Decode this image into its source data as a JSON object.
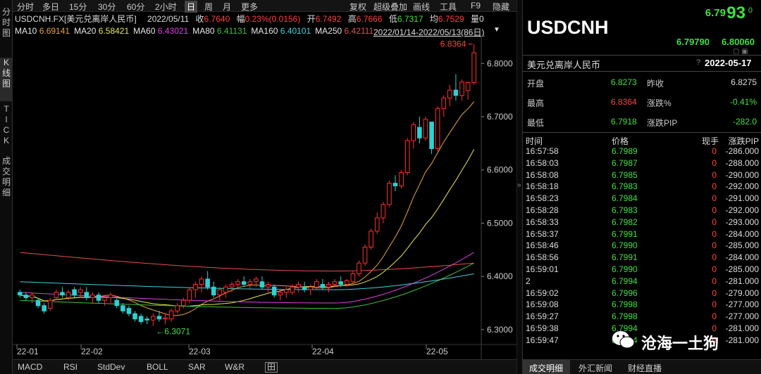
{
  "vtabs": [
    {
      "label": "分时图",
      "active": false
    },
    {
      "label": "K线图",
      "active": true
    },
    {
      "label": "TICK",
      "active": false
    },
    {
      "label": "成交明细",
      "active": false
    }
  ],
  "toolbar": {
    "left": [
      "分时",
      "多日",
      "15分",
      "30分",
      "60分",
      "2小时",
      "日",
      "周",
      "月",
      "更多"
    ],
    "active": "日",
    "right": [
      "复权",
      "超级叠加",
      "画线",
      "工具",
      "F9",
      "隐藏"
    ]
  },
  "info": {
    "symbol": "USDCNH.FX[美元兑离岸人民币]",
    "date": "2022/05/11",
    "close_label": "收",
    "close": "6.7640",
    "range_label": "幅",
    "range": "0.23%(0.0156)",
    "open_label": "开",
    "open": "6.7492",
    "high_label": "高",
    "high": "6.7666",
    "low_label": "低",
    "low": "6.7317",
    "last_label": "均",
    "last": "6.7529",
    "vol_label": "量",
    "vol": "0"
  },
  "ma": [
    {
      "label": "MA10",
      "value": "6.69141",
      "color": "#e8e8e8",
      "vcolor": "#e8a33a"
    },
    {
      "label": "MA20",
      "value": "6.58421",
      "color": "#e8e8e8",
      "vcolor": "#e8e84a"
    },
    {
      "label": "MA60",
      "value": "6.43021",
      "color": "#e8e8e8",
      "vcolor": "#e040e0"
    },
    {
      "label": "MA80",
      "value": "6.41131",
      "color": "#e8e8e8",
      "vcolor": "#40c040"
    },
    {
      "label": "MA160",
      "value": "6.40101",
      "color": "#e8e8e8",
      "vcolor": "#40d0e0"
    },
    {
      "label": "MA250",
      "value": "6.42111",
      "color": "#e8e8e8",
      "vcolor": "#e05050"
    }
  ],
  "range_text": "2022/01/14-2022/05/13(86日)",
  "chart_data": {
    "type": "candlestick",
    "y_ticks": [
      "6.8000",
      "6.7000",
      "6.6000",
      "6.5000",
      "6.4000",
      "6.3000"
    ],
    "ylim": [
      6.28,
      6.84
    ],
    "x_ticks": [
      "22-01",
      "22-02",
      "22-03",
      "22-04",
      "22-05"
    ],
    "annotations": {
      "max": "6.8364",
      "min": "6.3071"
    },
    "candles": [
      [
        6.37,
        6.375,
        6.36,
        6.365
      ],
      [
        6.365,
        6.37,
        6.355,
        6.36
      ],
      [
        6.36,
        6.37,
        6.35,
        6.365
      ],
      [
        6.355,
        6.36,
        6.34,
        6.345
      ],
      [
        6.345,
        6.35,
        6.33,
        6.335
      ],
      [
        6.34,
        6.36,
        6.335,
        6.355
      ],
      [
        6.36,
        6.375,
        6.355,
        6.37
      ],
      [
        6.37,
        6.38,
        6.36,
        6.365
      ],
      [
        6.36,
        6.375,
        6.355,
        6.37
      ],
      [
        6.375,
        6.38,
        6.36,
        6.365
      ],
      [
        6.37,
        6.38,
        6.36,
        6.375
      ],
      [
        6.37,
        6.38,
        6.355,
        6.36
      ],
      [
        6.36,
        6.37,
        6.35,
        6.365
      ],
      [
        6.365,
        6.37,
        6.35,
        6.355
      ],
      [
        6.355,
        6.365,
        6.345,
        6.36
      ],
      [
        6.36,
        6.37,
        6.35,
        6.365
      ],
      [
        6.355,
        6.36,
        6.34,
        6.345
      ],
      [
        6.345,
        6.35,
        6.33,
        6.335
      ],
      [
        6.34,
        6.345,
        6.325,
        6.33
      ],
      [
        6.33,
        6.335,
        6.315,
        6.32
      ],
      [
        6.325,
        6.33,
        6.31,
        6.315
      ],
      [
        6.32,
        6.325,
        6.31,
        6.318
      ],
      [
        6.318,
        6.33,
        6.3071,
        6.325
      ],
      [
        6.325,
        6.335,
        6.315,
        6.32
      ],
      [
        6.32,
        6.33,
        6.31,
        6.322
      ],
      [
        6.32,
        6.34,
        6.315,
        6.335
      ],
      [
        6.335,
        6.35,
        6.33,
        6.345
      ],
      [
        6.345,
        6.36,
        6.34,
        6.355
      ],
      [
        6.355,
        6.38,
        6.35,
        6.375
      ],
      [
        6.375,
        6.39,
        6.36,
        6.385
      ],
      [
        6.385,
        6.4,
        6.37,
        6.395
      ],
      [
        6.395,
        6.41,
        6.375,
        6.38
      ],
      [
        6.38,
        6.39,
        6.36,
        6.365
      ],
      [
        6.365,
        6.38,
        6.355,
        6.375
      ],
      [
        6.37,
        6.385,
        6.36,
        6.38
      ],
      [
        6.38,
        6.39,
        6.37,
        6.385
      ],
      [
        6.385,
        6.395,
        6.375,
        6.39
      ],
      [
        6.39,
        6.4,
        6.38,
        6.385
      ],
      [
        6.385,
        6.395,
        6.375,
        6.39
      ],
      [
        6.39,
        6.4,
        6.38,
        6.395
      ],
      [
        6.39,
        6.4,
        6.375,
        6.38
      ],
      [
        6.38,
        6.39,
        6.37,
        6.385
      ],
      [
        6.38,
        6.385,
        6.36,
        6.365
      ],
      [
        6.365,
        6.375,
        6.355,
        6.37
      ],
      [
        6.37,
        6.38,
        6.36,
        6.375
      ],
      [
        6.37,
        6.385,
        6.365,
        6.38
      ],
      [
        6.38,
        6.39,
        6.37,
        6.385
      ],
      [
        6.38,
        6.39,
        6.37,
        6.375
      ],
      [
        6.375,
        6.385,
        6.365,
        6.38
      ],
      [
        6.38,
        6.395,
        6.375,
        6.39
      ],
      [
        6.385,
        6.395,
        6.375,
        6.38
      ],
      [
        6.38,
        6.39,
        6.37,
        6.385
      ],
      [
        6.385,
        6.395,
        6.38,
        6.39
      ],
      [
        6.39,
        6.4,
        6.38,
        6.385
      ],
      [
        6.385,
        6.395,
        6.38,
        6.392
      ],
      [
        6.39,
        6.41,
        6.385,
        6.405
      ],
      [
        6.405,
        6.43,
        6.4,
        6.425
      ],
      [
        6.425,
        6.46,
        6.42,
        6.455
      ],
      [
        6.455,
        6.49,
        6.45,
        6.485
      ],
      [
        6.485,
        6.52,
        6.48,
        6.51
      ],
      [
        6.51,
        6.54,
        6.5,
        6.535
      ],
      [
        6.535,
        6.58,
        6.53,
        6.575
      ],
      [
        6.575,
        6.59,
        6.56,
        6.57
      ],
      [
        6.57,
        6.6,
        6.565,
        6.595
      ],
      [
        6.595,
        6.66,
        6.59,
        6.655
      ],
      [
        6.655,
        6.69,
        6.64,
        6.685
      ],
      [
        6.68,
        6.7,
        6.65,
        6.66
      ],
      [
        6.66,
        6.7,
        6.655,
        6.695
      ],
      [
        6.69,
        6.69,
        6.63,
        6.64
      ],
      [
        6.64,
        6.72,
        6.635,
        6.715
      ],
      [
        6.715,
        6.74,
        6.7,
        6.735
      ],
      [
        6.735,
        6.76,
        6.72,
        6.75
      ],
      [
        6.75,
        6.78,
        6.73,
        6.74
      ],
      [
        6.74,
        6.77,
        6.73,
        6.765
      ],
      [
        6.7492,
        6.7666,
        6.7317,
        6.764
      ],
      [
        6.764,
        6.8364,
        6.76,
        6.82
      ]
    ]
  },
  "right": {
    "price_big": "6.79",
    "price_big2": "93",
    "price_sup": "0",
    "symbol": "USDCNH",
    "bid": "6.79790",
    "ask": "6.80060",
    "name": "美元兑离岸人民币",
    "date": "2022-05-17",
    "help": "?",
    "open_label": "开盘",
    "open": "6.8273",
    "prev_label": "昨收",
    "prev": "6.8275",
    "high_label": "最高",
    "high": "6.8364",
    "chg_pct_label": "涨跌%",
    "chg_pct": "-0.41%",
    "low_label": "最低",
    "low": "6.7918",
    "chg_pip_label": "涨跌PIP",
    "chg_pip": "-282.0",
    "q_headers": {
      "time": "时间",
      "price": "价格",
      "vol": "现手",
      "pip": "涨跌PIP"
    },
    "quotes": [
      [
        "16:57:58",
        "6.7989",
        "0",
        "-286.000"
      ],
      [
        "16:58:03",
        "6.7987",
        "0",
        "-288.000"
      ],
      [
        "16:58:08",
        "6.7985",
        "0",
        "-290.000"
      ],
      [
        "16:58:18",
        "6.7983",
        "0",
        "-292.000"
      ],
      [
        "16:58:23",
        "6.7984",
        "0",
        "-291.000"
      ],
      [
        "16:58:28",
        "6.7983",
        "0",
        "-292.000"
      ],
      [
        "16:58:33",
        "6.7982",
        "0",
        "-293.000"
      ],
      [
        "16:58:37",
        "6.7991",
        "0",
        "-284.000"
      ],
      [
        "16:58:46",
        "6.7990",
        "0",
        "-285.000"
      ],
      [
        "16:58:56",
        "6.7991",
        "0",
        "-284.000"
      ],
      [
        "16:59:01",
        "6.7990",
        "0",
        "-285.000"
      ],
      [
        "2",
        "6.7994",
        "0",
        "-281.000"
      ],
      [
        "16:59:02",
        "6.7996",
        "0",
        "-279.000"
      ],
      [
        "16:59:08",
        "6.7998",
        "0",
        "-277.000"
      ],
      [
        "16:59:27",
        "6.7998",
        "0",
        "-277.000"
      ],
      [
        "16:59:38",
        "6.7994",
        "0",
        "-281.000"
      ],
      [
        "16:59:47",
        "6.7994",
        "0",
        "-281.000"
      ]
    ],
    "tabs": [
      "成交明细",
      "外汇新闻",
      "财经直播"
    ]
  },
  "bottom_tabs": [
    "MACD",
    "RSI",
    "StdDev",
    "BOLL",
    "SAR",
    "W&R",
    "田"
  ],
  "watermark": "沧海一土狗"
}
